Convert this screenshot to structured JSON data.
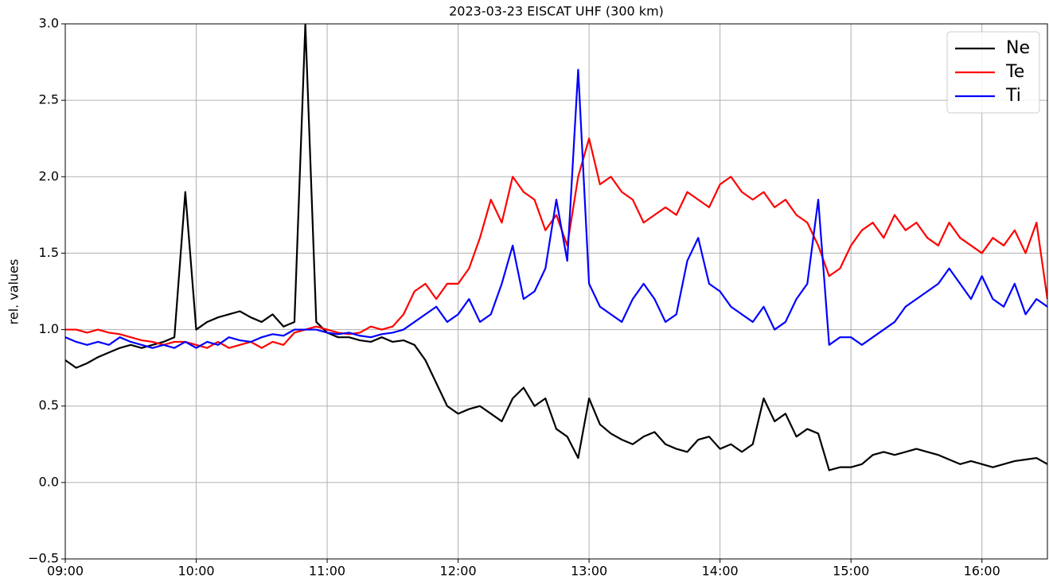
{
  "chart_data": {
    "type": "line",
    "title": "2023-03-23 EISCAT UHF (300 km)",
    "y_label": "rel. values",
    "x": [
      "09:00",
      "09:05",
      "09:10",
      "09:15",
      "09:20",
      "09:25",
      "09:30",
      "09:35",
      "09:40",
      "09:45",
      "09:50",
      "09:55",
      "10:00",
      "10:05",
      "10:10",
      "10:15",
      "10:20",
      "10:25",
      "10:30",
      "10:35",
      "10:40",
      "10:45",
      "10:50",
      "10:55",
      "11:00",
      "11:05",
      "11:10",
      "11:15",
      "11:20",
      "11:25",
      "11:30",
      "11:35",
      "11:40",
      "11:45",
      "11:50",
      "11:55",
      "12:00",
      "12:05",
      "12:10",
      "12:15",
      "12:20",
      "12:25",
      "12:30",
      "12:35",
      "12:40",
      "12:45",
      "12:50",
      "12:55",
      "13:00",
      "13:05",
      "13:10",
      "13:15",
      "13:20",
      "13:25",
      "13:30",
      "13:35",
      "13:40",
      "13:45",
      "13:50",
      "13:55",
      "14:00",
      "14:05",
      "14:10",
      "14:15",
      "14:20",
      "14:25",
      "14:30",
      "14:35",
      "14:40",
      "14:45",
      "14:50",
      "14:55",
      "15:00",
      "15:05",
      "15:10",
      "15:15",
      "15:20",
      "15:25",
      "15:30",
      "15:35",
      "15:40",
      "15:45",
      "15:50",
      "15:55",
      "16:00",
      "16:05",
      "16:10",
      "16:15",
      "16:20",
      "16:25",
      "16:30"
    ],
    "series": [
      {
        "name": "Ne",
        "color": "#000000",
        "values": [
          0.8,
          0.75,
          0.78,
          0.82,
          0.85,
          0.88,
          0.9,
          0.88,
          0.9,
          0.92,
          0.95,
          1.9,
          1.0,
          1.05,
          1.08,
          1.1,
          1.12,
          1.08,
          1.05,
          1.1,
          1.02,
          1.05,
          3.0,
          1.05,
          0.98,
          0.95,
          0.95,
          0.93,
          0.92,
          0.95,
          0.92,
          0.93,
          0.9,
          0.8,
          0.65,
          0.5,
          0.45,
          0.48,
          0.5,
          0.45,
          0.4,
          0.55,
          0.62,
          0.5,
          0.55,
          0.35,
          0.3,
          0.16,
          0.55,
          0.38,
          0.32,
          0.28,
          0.25,
          0.3,
          0.33,
          0.25,
          0.22,
          0.2,
          0.28,
          0.3,
          0.22,
          0.25,
          0.2,
          0.25,
          0.55,
          0.4,
          0.45,
          0.3,
          0.35,
          0.32,
          0.08,
          0.1,
          0.1,
          0.12,
          0.18,
          0.2,
          0.18,
          0.2,
          0.22,
          0.2,
          0.18,
          0.15,
          0.12,
          0.14,
          0.12,
          0.1,
          0.12,
          0.14,
          0.15,
          0.16,
          0.12
        ]
      },
      {
        "name": "Te",
        "color": "#ff0000",
        "values": [
          1.0,
          1.0,
          0.98,
          1.0,
          0.98,
          0.97,
          0.95,
          0.93,
          0.92,
          0.9,
          0.92,
          0.92,
          0.9,
          0.88,
          0.92,
          0.88,
          0.9,
          0.92,
          0.88,
          0.92,
          0.9,
          0.98,
          1.0,
          1.02,
          1.0,
          0.98,
          0.97,
          0.98,
          1.02,
          1.0,
          1.02,
          1.1,
          1.25,
          1.3,
          1.2,
          1.3,
          1.3,
          1.4,
          1.6,
          1.85,
          1.7,
          2.0,
          1.9,
          1.85,
          1.65,
          1.75,
          1.55,
          2.0,
          2.25,
          1.95,
          2.0,
          1.9,
          1.85,
          1.7,
          1.75,
          1.8,
          1.75,
          1.9,
          1.85,
          1.8,
          1.95,
          2.0,
          1.9,
          1.85,
          1.9,
          1.8,
          1.85,
          1.75,
          1.7,
          1.55,
          1.35,
          1.4,
          1.55,
          1.65,
          1.7,
          1.6,
          1.75,
          1.65,
          1.7,
          1.6,
          1.55,
          1.7,
          1.6,
          1.55,
          1.5,
          1.6,
          1.55,
          1.65,
          1.5,
          1.7,
          1.2
        ]
      },
      {
        "name": "Ti",
        "color": "#0000ff",
        "values": [
          0.95,
          0.92,
          0.9,
          0.92,
          0.9,
          0.95,
          0.92,
          0.9,
          0.88,
          0.9,
          0.88,
          0.92,
          0.88,
          0.92,
          0.9,
          0.95,
          0.93,
          0.92,
          0.95,
          0.97,
          0.96,
          1.0,
          1.0,
          1.0,
          0.98,
          0.97,
          0.98,
          0.96,
          0.95,
          0.97,
          0.98,
          1.0,
          1.05,
          1.1,
          1.15,
          1.05,
          1.1,
          1.2,
          1.05,
          1.1,
          1.3,
          1.55,
          1.2,
          1.25,
          1.4,
          1.85,
          1.45,
          2.7,
          1.3,
          1.15,
          1.1,
          1.05,
          1.2,
          1.3,
          1.2,
          1.05,
          1.1,
          1.45,
          1.6,
          1.3,
          1.25,
          1.15,
          1.1,
          1.05,
          1.15,
          1.0,
          1.05,
          1.2,
          1.3,
          1.85,
          0.9,
          0.95,
          0.95,
          0.9,
          0.95,
          1.0,
          1.05,
          1.15,
          1.2,
          1.25,
          1.3,
          1.4,
          1.3,
          1.2,
          1.35,
          1.2,
          1.15,
          1.3,
          1.1,
          1.2,
          1.15
        ]
      }
    ],
    "xlim": [
      "09:00",
      "16:30"
    ],
    "xticks": [
      "09:00",
      "10:00",
      "11:00",
      "12:00",
      "13:00",
      "14:00",
      "15:00",
      "16:00"
    ],
    "ylim": [
      -0.5,
      3.0
    ],
    "yticks": [
      {
        "value": -0.5,
        "label": "−0.5"
      },
      {
        "value": 0,
        "label": "0.0"
      },
      {
        "value": 0.5,
        "label": "0.5"
      },
      {
        "value": 1,
        "label": "1.0"
      },
      {
        "value": 1.5,
        "label": "1.5"
      },
      {
        "value": 2,
        "label": "2.0"
      },
      {
        "value": 2.5,
        "label": "2.5"
      },
      {
        "value": 3,
        "label": "3.0"
      }
    ],
    "grid": true,
    "legend": "upper right"
  }
}
